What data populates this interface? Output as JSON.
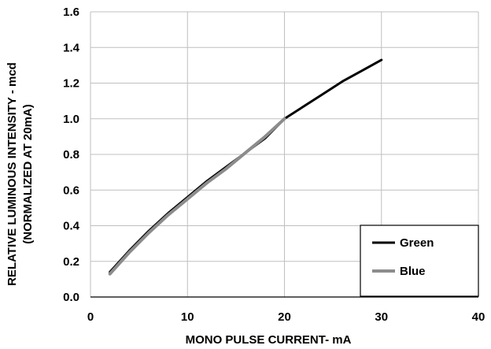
{
  "chart_data": {
    "type": "line",
    "title": "",
    "xlabel": "MONO PULSE CURRENT- mA",
    "ylabel_line1": "RELATIVE LUMINOUS INTENSITY - mcd",
    "ylabel_line2": "(NORMALIZED AT 20mA)",
    "xlim": [
      0,
      40
    ],
    "ylim": [
      0.0,
      1.6
    ],
    "x_ticks": [
      0,
      10,
      20,
      30,
      40
    ],
    "x_tick_labels": [
      "0",
      "10",
      "20",
      "30",
      "40"
    ],
    "y_ticks": [
      0.0,
      0.2,
      0.4,
      0.6,
      0.8,
      1.0,
      1.2,
      1.4,
      1.6
    ],
    "y_tick_labels": [
      "0.0",
      "0.2",
      "0.4",
      "0.6",
      "0.8",
      "1.0",
      "1.2",
      "1.4",
      "1.6"
    ],
    "grid": true,
    "legend_position": "bottom-right",
    "series": [
      {
        "name": "Green",
        "color": "#000000",
        "x": [
          2,
          4,
          6,
          8,
          10,
          12,
          14,
          16,
          18,
          20,
          22,
          24,
          26,
          28,
          30
        ],
        "y": [
          0.14,
          0.26,
          0.37,
          0.47,
          0.56,
          0.65,
          0.73,
          0.81,
          0.89,
          1.0,
          1.07,
          1.14,
          1.21,
          1.27,
          1.33
        ]
      },
      {
        "name": "Blue",
        "color": "#8c8c8c",
        "x": [
          2,
          4,
          6,
          8,
          10,
          12,
          14,
          16,
          18,
          20
        ],
        "y": [
          0.13,
          0.25,
          0.36,
          0.46,
          0.55,
          0.64,
          0.72,
          0.81,
          0.9,
          1.0
        ]
      }
    ]
  }
}
